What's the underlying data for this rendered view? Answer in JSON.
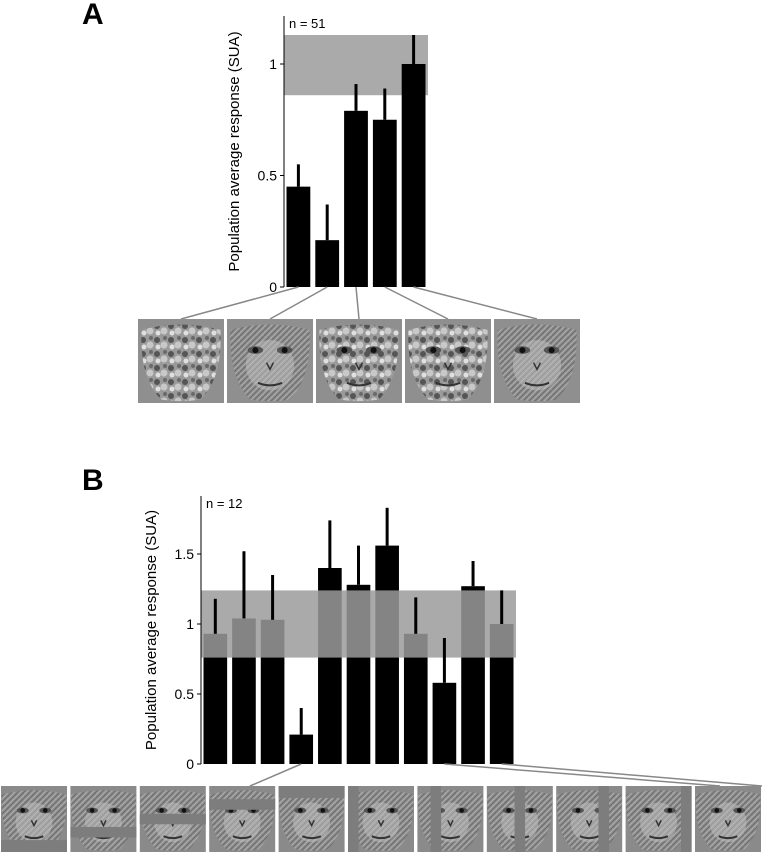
{
  "chart_data": [
    {
      "panel": "A",
      "type": "bar",
      "ylabel": "Population average response (SUA)",
      "annotation": "n = 51",
      "yticks": [
        {
          "value": 0,
          "label": "0"
        },
        {
          "value": 0.5,
          "label": "0.5"
        },
        {
          "value": 1,
          "label": "1"
        }
      ],
      "ylim": [
        0,
        1.13
      ],
      "values": [
        0.45,
        0.21,
        0.79,
        0.75,
        1.0
      ],
      "errors": [
        0.1,
        0.16,
        0.12,
        0.14,
        0.13
      ],
      "reference_band": [
        0.86,
        1.13
      ],
      "colors": {
        "bar": "#000000",
        "band": "#9b9b9b",
        "band_opacity": 0.85
      }
    },
    {
      "panel": "B",
      "type": "bar",
      "ylabel": "Population average response (SUA)",
      "annotation": "n = 12",
      "yticks": [
        {
          "value": 0,
          "label": "0"
        },
        {
          "value": 0.5,
          "label": "0.5"
        },
        {
          "value": 1,
          "label": "1"
        },
        {
          "value": 1.5,
          "label": "1.5"
        }
      ],
      "ylim": [
        0,
        1.9
      ],
      "values": [
        0.93,
        1.04,
        1.03,
        0.21,
        1.4,
        1.28,
        1.56,
        0.93,
        0.58,
        1.27,
        1.0
      ],
      "errors": [
        0.25,
        0.48,
        0.32,
        0.19,
        0.34,
        0.28,
        0.27,
        0.26,
        0.32,
        0.18,
        0.24
      ],
      "reference_band": [
        0.76,
        1.24
      ],
      "colors": {
        "bar": "#000000",
        "band": "#9b9b9b",
        "band_opacity": 0.85
      }
    }
  ],
  "panels": {
    "a": {
      "label": "A"
    },
    "b": {
      "label": "B"
    }
  },
  "stimuli_a": [
    {
      "type": "scrambled"
    },
    {
      "type": "face"
    },
    {
      "type": "face-scrambled-texture"
    },
    {
      "type": "face-scrambled-texture"
    },
    {
      "type": "face"
    }
  ],
  "stimuli_b": [
    {
      "occluder": "bottom"
    },
    {
      "occluder": "lower-band"
    },
    {
      "occluder": "middle-band"
    },
    {
      "occluder": "upper-band"
    },
    {
      "occluder": "top"
    },
    {
      "occluder": "left-edge"
    },
    {
      "occluder": "left-vertical"
    },
    {
      "occluder": "center-vertical"
    },
    {
      "occluder": "right-vertical"
    },
    {
      "occluder": "right-edge"
    },
    {
      "occluder": "none"
    }
  ]
}
